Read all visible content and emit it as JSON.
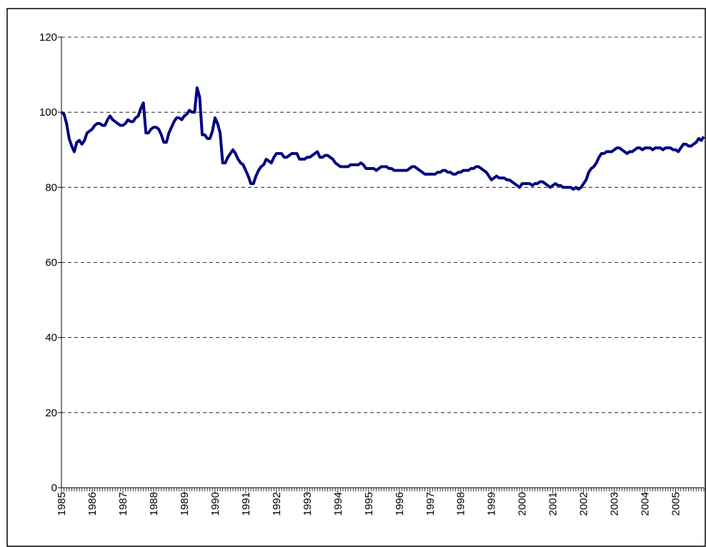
{
  "chart_data": {
    "type": "line",
    "categories": [
      "1985",
      null,
      null,
      null,
      null,
      null,
      null,
      null,
      null,
      null,
      null,
      null,
      "1986",
      null,
      null,
      null,
      null,
      null,
      null,
      null,
      null,
      null,
      null,
      null,
      "1987",
      null,
      null,
      null,
      null,
      null,
      null,
      null,
      null,
      null,
      null,
      null,
      "1988",
      null,
      null,
      null,
      null,
      null,
      null,
      null,
      null,
      null,
      null,
      null,
      "1989",
      null,
      null,
      null,
      null,
      null,
      null,
      null,
      null,
      null,
      null,
      null,
      "1990",
      null,
      null,
      null,
      null,
      null,
      null,
      null,
      null,
      null,
      null,
      null,
      "1991",
      null,
      null,
      null,
      null,
      null,
      null,
      null,
      null,
      null,
      null,
      null,
      "1992",
      null,
      null,
      null,
      null,
      null,
      null,
      null,
      null,
      null,
      null,
      null,
      "1993",
      null,
      null,
      null,
      null,
      null,
      null,
      null,
      null,
      null,
      null,
      null,
      "1994",
      null,
      null,
      null,
      null,
      null,
      null,
      null,
      null,
      null,
      null,
      null,
      "1995",
      null,
      null,
      null,
      null,
      null,
      null,
      null,
      null,
      null,
      null,
      null,
      "1996",
      null,
      null,
      null,
      null,
      null,
      null,
      null,
      null,
      null,
      null,
      null,
      "1997",
      null,
      null,
      null,
      null,
      null,
      null,
      null,
      null,
      null,
      null,
      null,
      "1998",
      null,
      null,
      null,
      null,
      null,
      null,
      null,
      null,
      null,
      null,
      null,
      "1999",
      null,
      null,
      null,
      null,
      null,
      null,
      null,
      null,
      null,
      null,
      null,
      "2000",
      null,
      null,
      null,
      null,
      null,
      null,
      null,
      null,
      null,
      null,
      null,
      "2001",
      null,
      null,
      null,
      null,
      null,
      null,
      null,
      null,
      null,
      null,
      null,
      "2002",
      null,
      null,
      null,
      null,
      null,
      null,
      null,
      null,
      null,
      null,
      null,
      "2003",
      null,
      null,
      null,
      null,
      null,
      null,
      null,
      null,
      null,
      null,
      null,
      "2004",
      null,
      null,
      null,
      null,
      null,
      null,
      null,
      null,
      null,
      null,
      null,
      "2005",
      null,
      null,
      null,
      null,
      null,
      null,
      null,
      null,
      null,
      null,
      null
    ],
    "series": [
      {
        "color": "#000080",
        "values": [
          100,
          99.5,
          97,
          93,
          91,
          89.5,
          92,
          92.5,
          91.5,
          92.5,
          94.5,
          95,
          95.5,
          96.5,
          97,
          97,
          96.5,
          96.5,
          98,
          99,
          98,
          97.5,
          97,
          96.5,
          96.5,
          97,
          98,
          97.5,
          97.5,
          98.5,
          99,
          101,
          102.5,
          94.5,
          94.5,
          95.5,
          96,
          96,
          95.5,
          94,
          92,
          92,
          94.5,
          96,
          97.5,
          98.5,
          98.5,
          98,
          99,
          99.5,
          100.5,
          100,
          100,
          106.5,
          104,
          94,
          94,
          93,
          93,
          95,
          98.5,
          97,
          94.5,
          86.5,
          86.5,
          88,
          89,
          90,
          89,
          87.5,
          86.5,
          86,
          84.5,
          83,
          81,
          81,
          83,
          84.5,
          85.5,
          86,
          87.5,
          87,
          86.5,
          88,
          89,
          89,
          89,
          88,
          88,
          88.5,
          89,
          89,
          89,
          87.5,
          87.5,
          87.5,
          88,
          88,
          88.5,
          89,
          89.5,
          88,
          88,
          88.5,
          88.5,
          88,
          87.5,
          86.5,
          86,
          85.5,
          85.5,
          85.5,
          85.5,
          86,
          86,
          86,
          86,
          86.5,
          86,
          85,
          85,
          85,
          85,
          84.5,
          85,
          85.5,
          85.5,
          85.5,
          85,
          85,
          84.5,
          84.5,
          84.5,
          84.5,
          84.5,
          84.5,
          85,
          85.5,
          85.5,
          85,
          84.5,
          84,
          83.5,
          83.5,
          83.5,
          83.5,
          83.5,
          84,
          84,
          84.5,
          84.5,
          84,
          84,
          83.5,
          83.5,
          84,
          84,
          84.5,
          84.5,
          84.5,
          85,
          85,
          85.5,
          85.5,
          85,
          84.5,
          84,
          83,
          82,
          82.5,
          83,
          82.5,
          82.5,
          82.5,
          82,
          82,
          81.5,
          81,
          80.5,
          80,
          81,
          81,
          81,
          81,
          80.5,
          81,
          81,
          81.5,
          81.5,
          81,
          80.5,
          80,
          80.5,
          81,
          80.5,
          80.5,
          80,
          80,
          80,
          80,
          79.5,
          80,
          79.5,
          80,
          81,
          82,
          84,
          85,
          85.5,
          86.5,
          88,
          89,
          89,
          89.5,
          89.5,
          89.5,
          90,
          90.5,
          90.5,
          90,
          89.5,
          89,
          89.5,
          89.5,
          90,
          90.5,
          90.5,
          90,
          90.5,
          90.5,
          90.5,
          90,
          90.5,
          90.5,
          90.5,
          90,
          90.5,
          90.5,
          90.5,
          90,
          90,
          89.5,
          90.5,
          91.5,
          91.5,
          91,
          91,
          91.5,
          92,
          93,
          92.5,
          93.5
        ]
      }
    ],
    "ylim": [
      0,
      120
    ],
    "yticks": [
      0,
      20,
      40,
      60,
      80,
      100,
      120
    ],
    "grid": true
  }
}
